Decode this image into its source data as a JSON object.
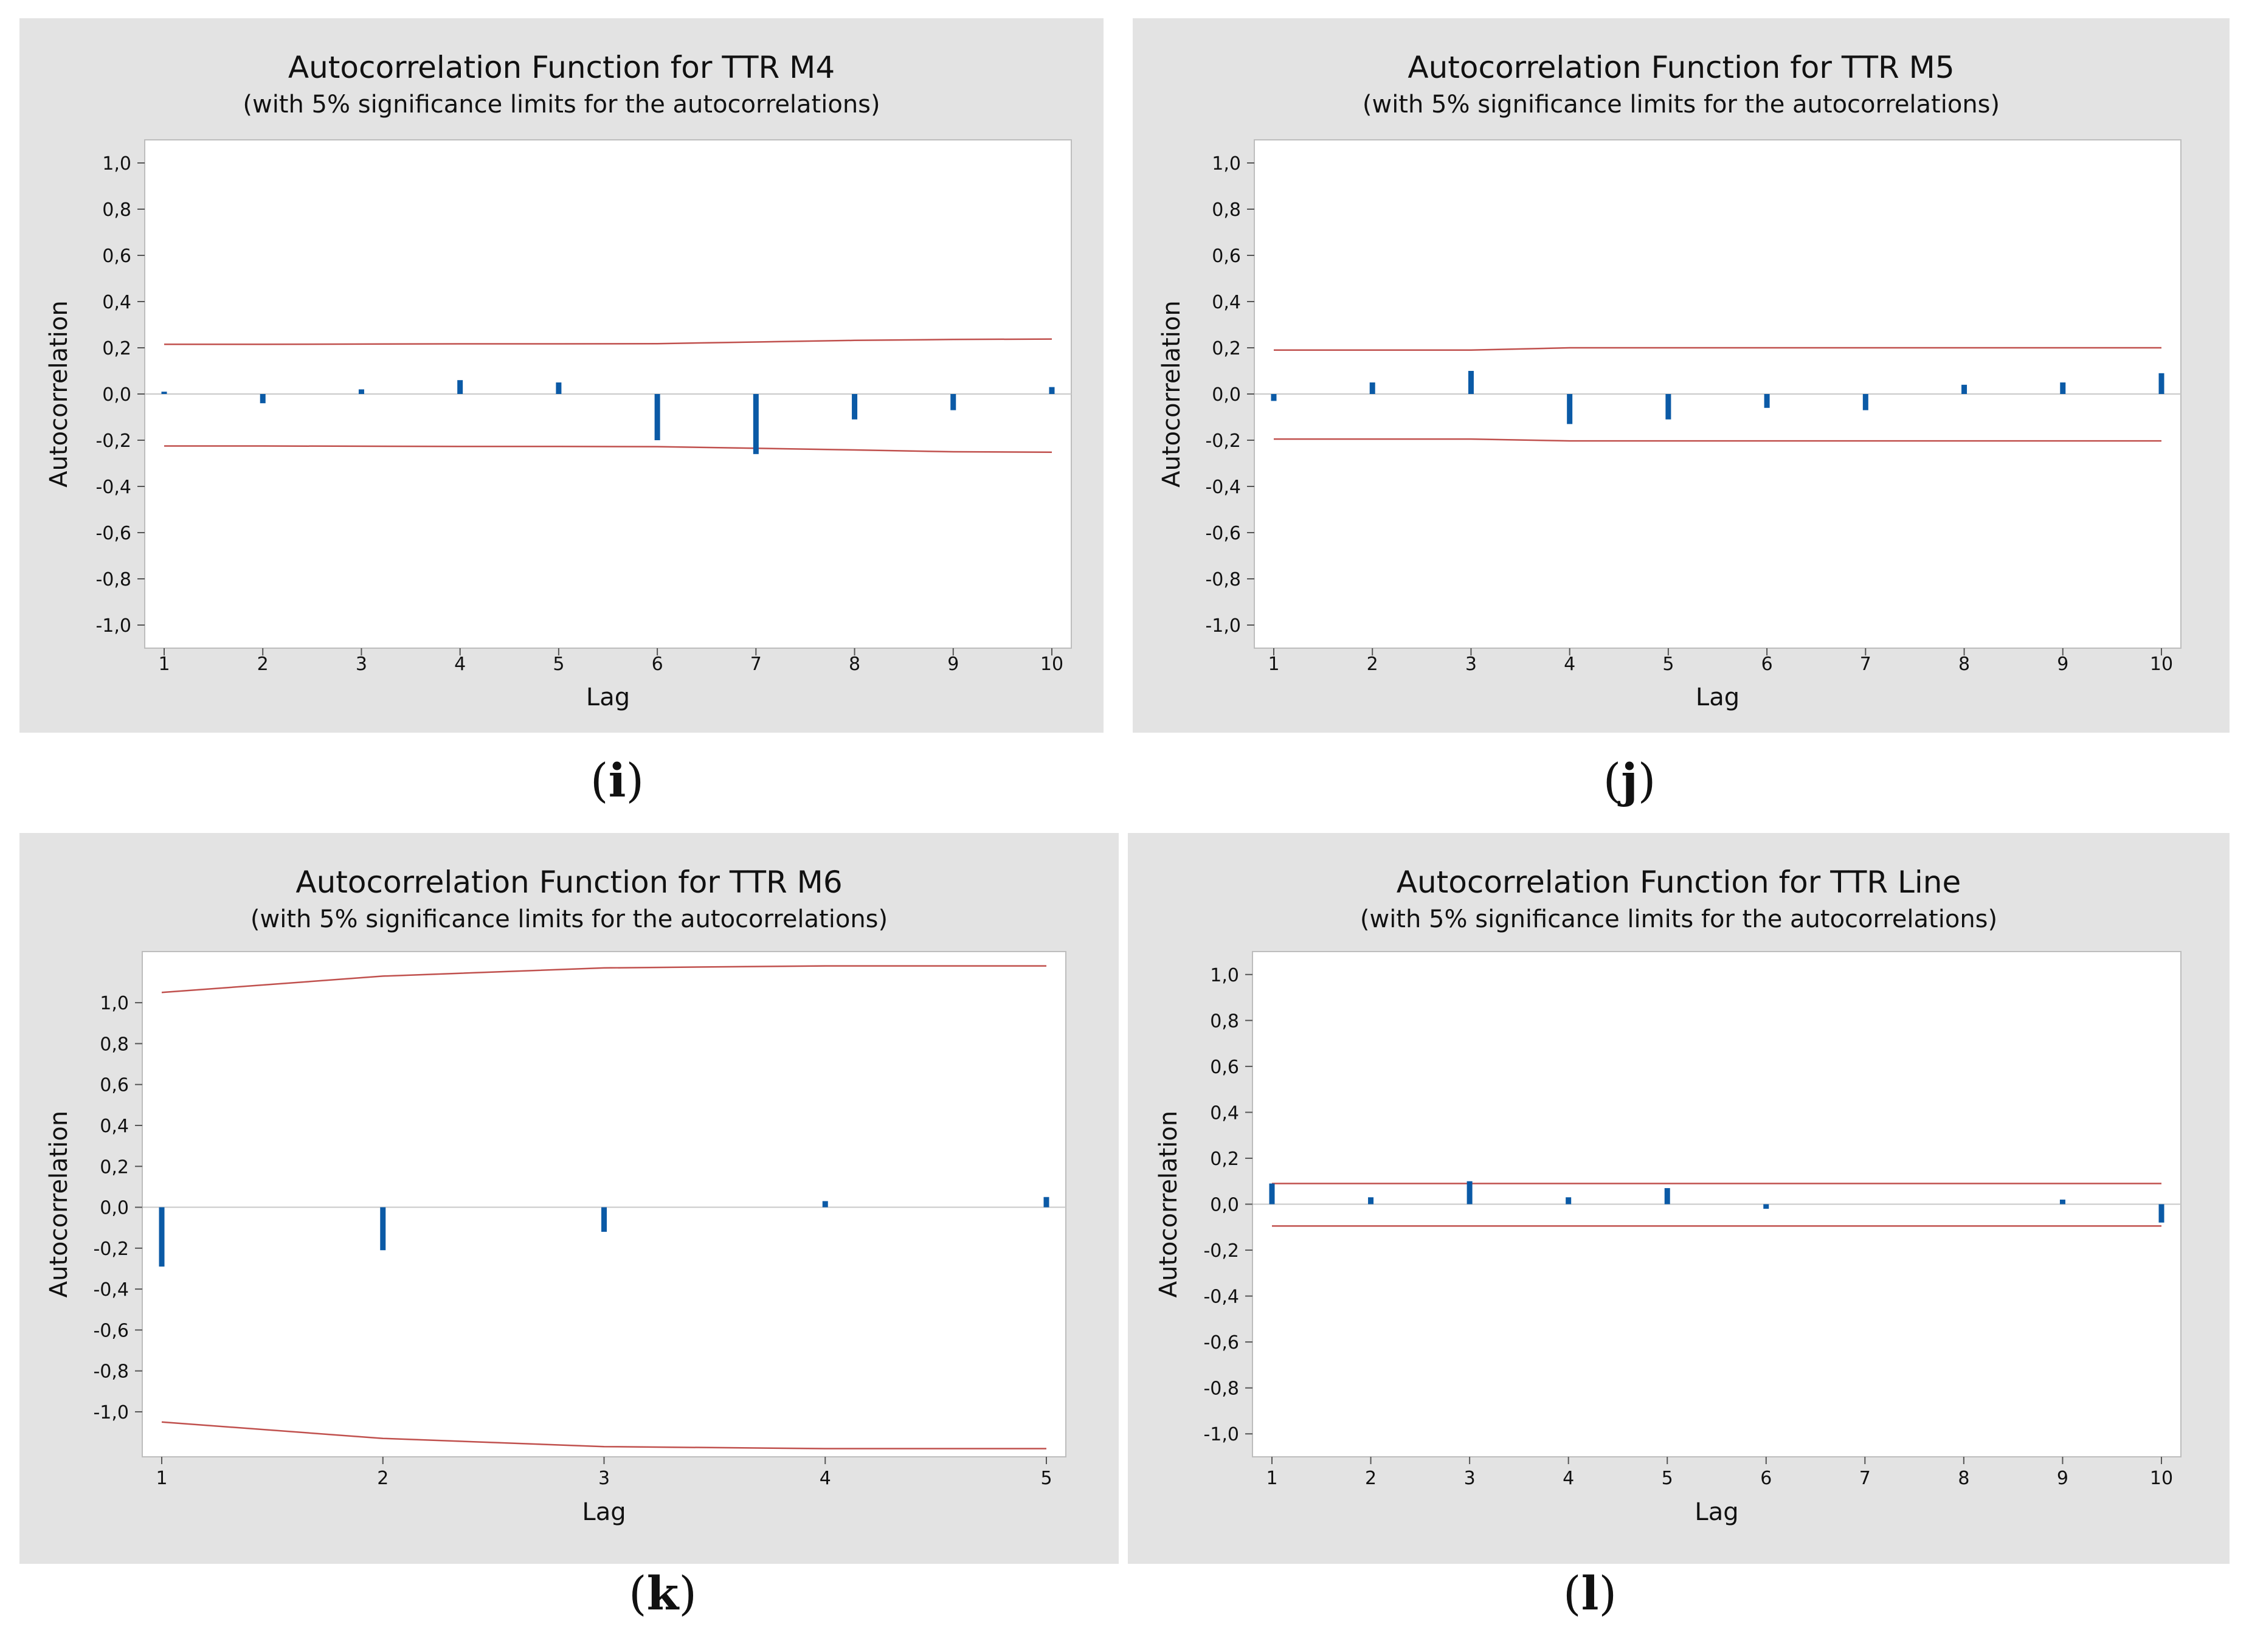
{
  "colors": {
    "panel_bg": "#e3e3e3",
    "bar": "#0b5aa6",
    "limit": "#c0504d"
  },
  "chart_data": [
    {
      "type": "bar",
      "caption_letter": "i",
      "title": "Autocorrelation Function for TTR M4",
      "subtitle": "(with 5% significance limits for the autocorrelations)",
      "xlabel": "Lag",
      "ylabel": "Autocorrelation",
      "ylim": [
        -1.1,
        1.1
      ],
      "yticks": [
        "1,0",
        "0,8",
        "0,6",
        "0,4",
        "0,2",
        "0,0",
        "-0,2",
        "-0,4",
        "-0,6",
        "-0,8",
        "-1,0"
      ],
      "ytick_values": [
        1.0,
        0.8,
        0.6,
        0.4,
        0.2,
        0.0,
        -0.2,
        -0.4,
        -0.6,
        -0.8,
        -1.0
      ],
      "lags": [
        1,
        2,
        3,
        4,
        5,
        6,
        7,
        8,
        9,
        10
      ],
      "values": [
        0.01,
        -0.04,
        0.02,
        0.06,
        0.05,
        -0.2,
        -0.26,
        -0.11,
        -0.07,
        0.03
      ],
      "upper_limit": [
        0.215,
        0.215,
        0.216,
        0.217,
        0.217,
        0.218,
        0.225,
        0.232,
        0.236,
        0.238
      ],
      "lower_limit": [
        -0.225,
        -0.225,
        -0.226,
        -0.227,
        -0.227,
        -0.228,
        -0.235,
        -0.242,
        -0.25,
        -0.252
      ]
    },
    {
      "type": "bar",
      "caption_letter": "j",
      "title": "Autocorrelation Function for TTR M5",
      "subtitle": "(with 5% significance limits for the autocorrelations)",
      "xlabel": "Lag",
      "ylabel": "Autocorrelation",
      "ylim": [
        -1.1,
        1.1
      ],
      "yticks": [
        "1,0",
        "0,8",
        "0,6",
        "0,4",
        "0,2",
        "0,0",
        "-0,2",
        "-0,4",
        "-0,6",
        "-0,8",
        "-1,0"
      ],
      "ytick_values": [
        1.0,
        0.8,
        0.6,
        0.4,
        0.2,
        0.0,
        -0.2,
        -0.4,
        -0.6,
        -0.8,
        -1.0
      ],
      "lags": [
        1,
        2,
        3,
        4,
        5,
        6,
        7,
        8,
        9,
        10
      ],
      "values": [
        -0.03,
        0.05,
        0.1,
        -0.13,
        -0.11,
        -0.06,
        -0.07,
        0.04,
        0.05,
        0.09
      ],
      "upper_limit": [
        0.19,
        0.19,
        0.19,
        0.2,
        0.2,
        0.2,
        0.2,
        0.2,
        0.2,
        0.2
      ],
      "lower_limit": [
        -0.195,
        -0.195,
        -0.195,
        -0.203,
        -0.203,
        -0.203,
        -0.203,
        -0.203,
        -0.203,
        -0.203
      ]
    },
    {
      "type": "bar",
      "caption_letter": "k",
      "title": "Autocorrelation Function for TTR M6",
      "subtitle": "(with 5% significance limits for the autocorrelations)",
      "xlabel": "Lag",
      "ylabel": "Autocorrelation",
      "ylim": [
        -1.22,
        1.25
      ],
      "yticks": [
        "1,0",
        "0,8",
        "0,6",
        "0,4",
        "0,2",
        "0,0",
        "-0,2",
        "-0,4",
        "-0,6",
        "-0,8",
        "-1,0"
      ],
      "ytick_values": [
        1.0,
        0.8,
        0.6,
        0.4,
        0.2,
        0.0,
        -0.2,
        -0.4,
        -0.6,
        -0.8,
        -1.0
      ],
      "lags": [
        1,
        2,
        3,
        4,
        5
      ],
      "values": [
        -0.29,
        -0.21,
        -0.12,
        0.03,
        0.05
      ],
      "upper_limit": [
        1.05,
        1.13,
        1.17,
        1.18,
        1.18
      ],
      "lower_limit": [
        -1.05,
        -1.13,
        -1.17,
        -1.18,
        -1.18
      ]
    },
    {
      "type": "bar",
      "caption_letter": "l",
      "title": "Autocorrelation Function for TTR Line",
      "subtitle": "(with 5% significance limits for the autocorrelations)",
      "xlabel": "Lag",
      "ylabel": "Autocorrelation",
      "ylim": [
        -1.1,
        1.1
      ],
      "yticks": [
        "1,0",
        "0,8",
        "0,6",
        "0,4",
        "0,2",
        "0,0",
        "-0,2",
        "-0,4",
        "-0,6",
        "-0,8",
        "-1,0"
      ],
      "ytick_values": [
        1.0,
        0.8,
        0.6,
        0.4,
        0.2,
        0.0,
        -0.2,
        -0.4,
        -0.6,
        -0.8,
        -1.0
      ],
      "lags": [
        1,
        2,
        3,
        4,
        5,
        6,
        7,
        8,
        9,
        10
      ],
      "values": [
        0.09,
        0.03,
        0.1,
        0.03,
        0.07,
        -0.02,
        0.0,
        0.0,
        0.02,
        -0.08
      ],
      "upper_limit": [
        0.09,
        0.09,
        0.09,
        0.09,
        0.09,
        0.09,
        0.09,
        0.09,
        0.09,
        0.09
      ],
      "lower_limit": [
        -0.095,
        -0.095,
        -0.095,
        -0.095,
        -0.095,
        -0.095,
        -0.095,
        -0.095,
        -0.095,
        -0.095
      ]
    }
  ]
}
